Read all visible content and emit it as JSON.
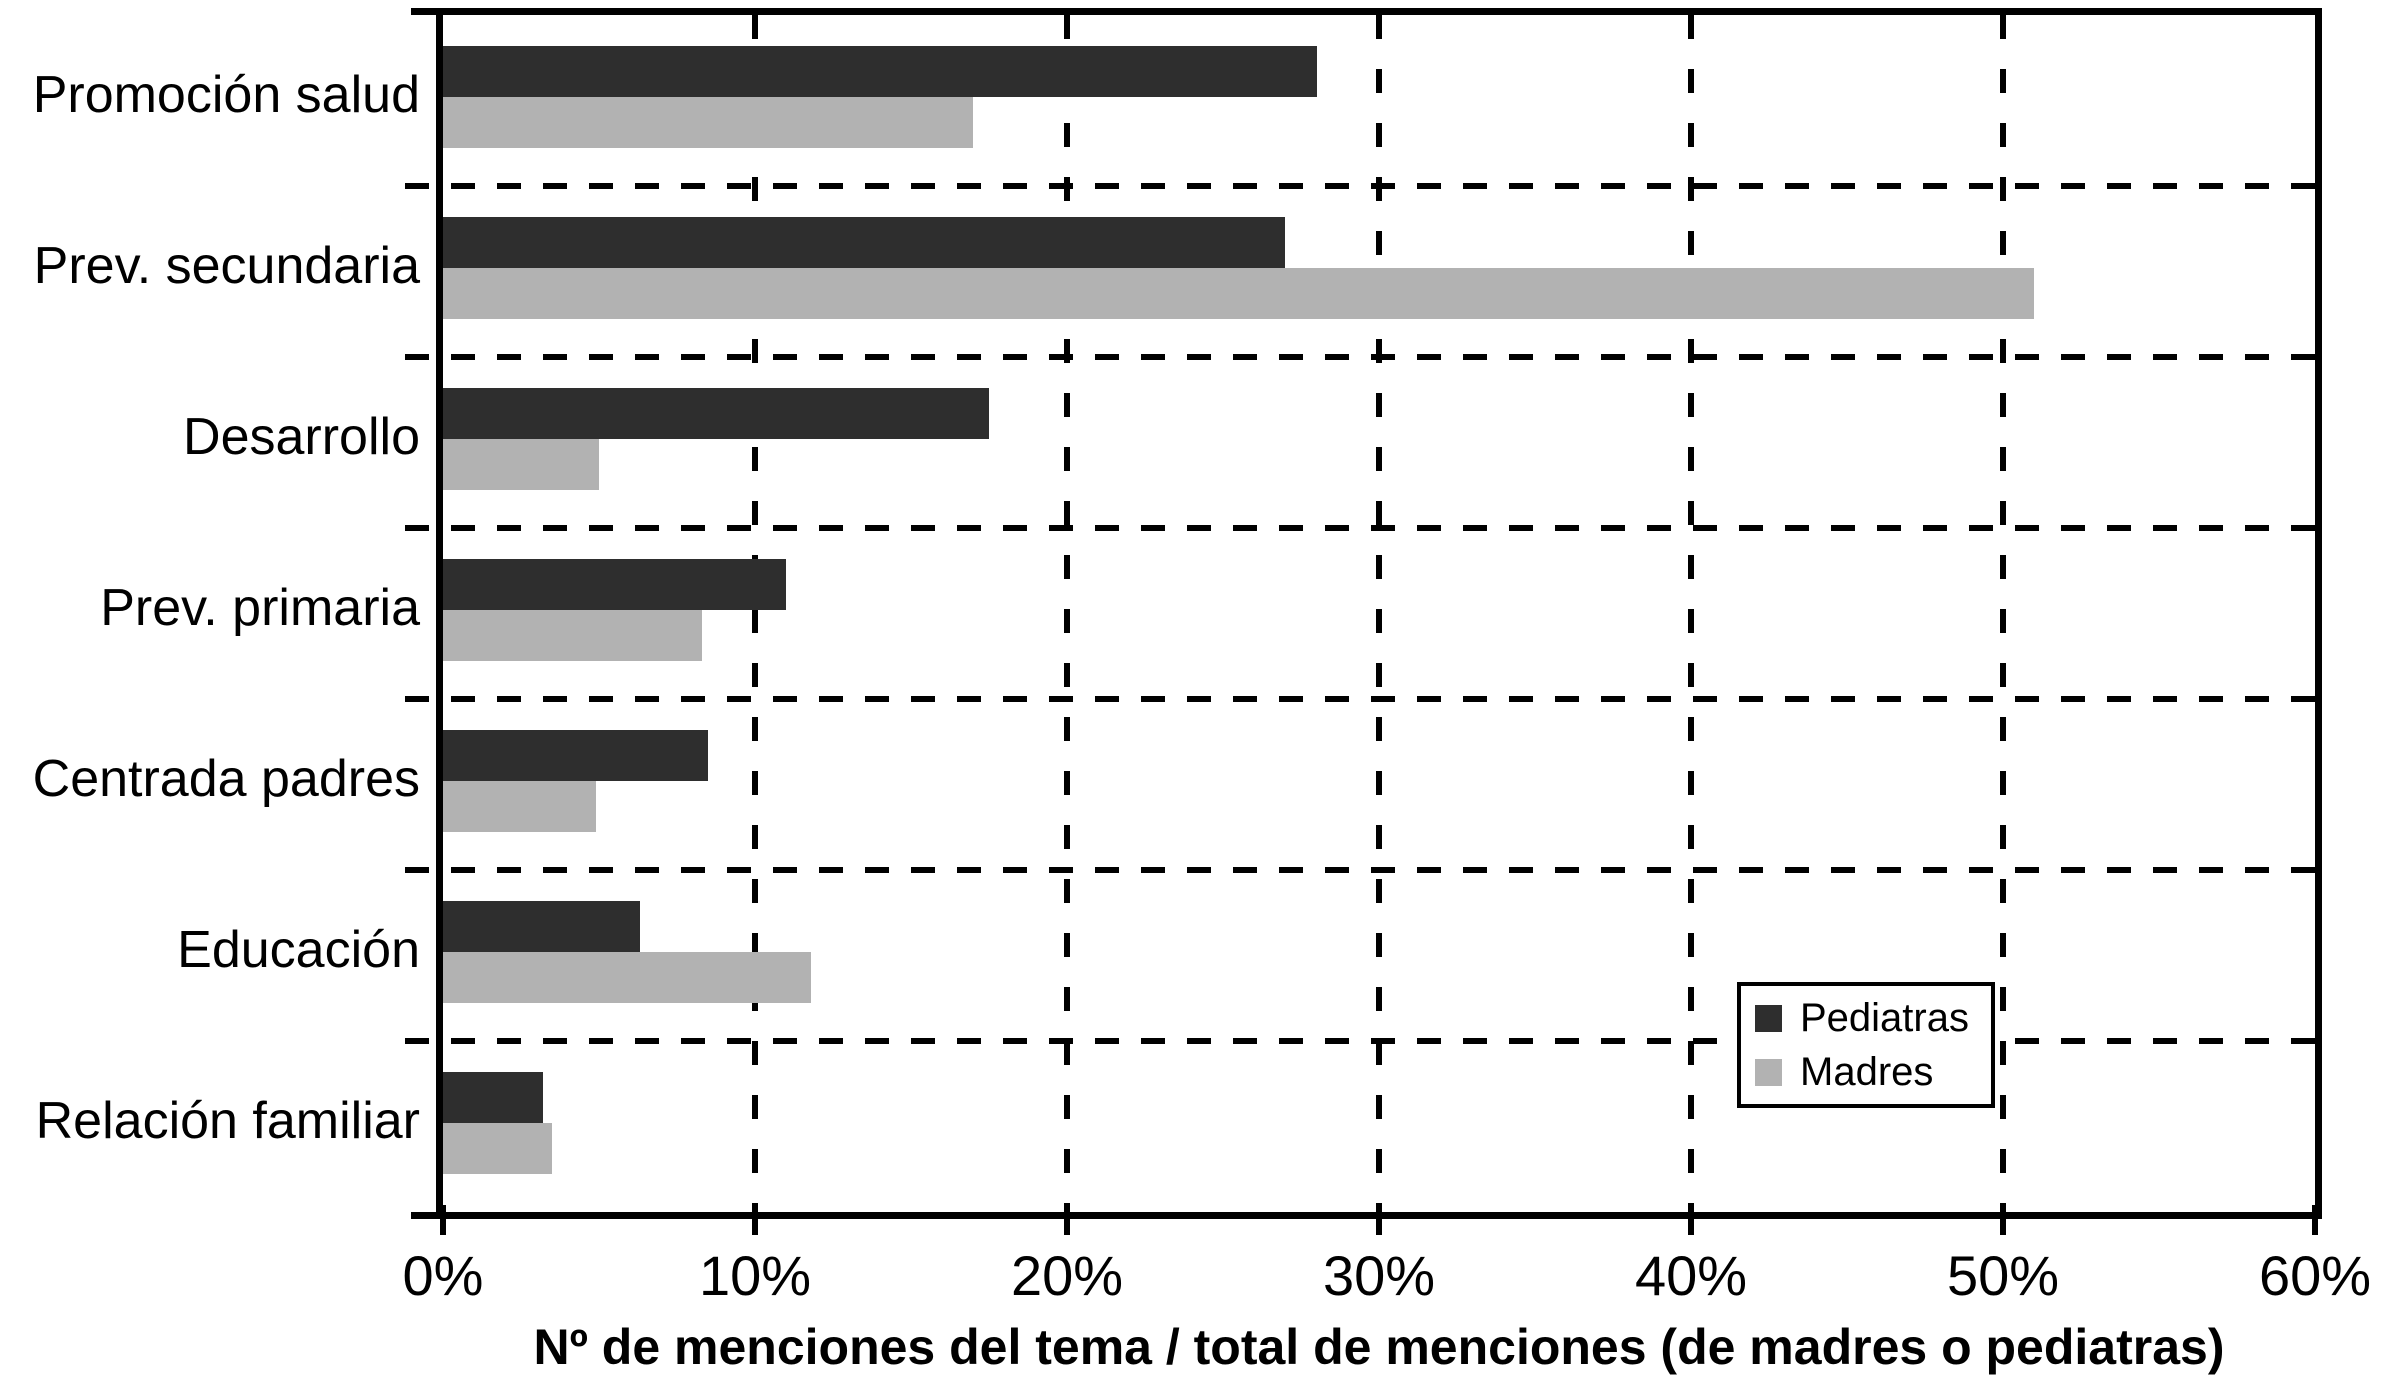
{
  "chart_data": {
    "type": "bar",
    "orientation": "horizontal",
    "title": "",
    "xlabel": "Nº de menciones del tema / total de menciones (de madres o pediatras)",
    "ylabel": "",
    "xlim": [
      0,
      60
    ],
    "x_tick_labels": [
      "0%",
      "10%",
      "20%",
      "30%",
      "40%",
      "50%",
      "60%"
    ],
    "x_tick_values": [
      0,
      10,
      20,
      30,
      40,
      50,
      60
    ],
    "grid": "dashed vertical gridlines every 10%, dashed horizontal separators between categories",
    "legend_position": "inside lower-right",
    "categories": [
      "Promoción salud",
      "Prev. secundaria",
      "Desarrollo",
      "Prev. primaria",
      "Centrada padres",
      "Educación",
      "Relación familiar"
    ],
    "series": [
      {
        "name": "Pediatras",
        "color": "#2e2e2e",
        "values": [
          28,
          27,
          17.5,
          11,
          8.5,
          6.3,
          3.2
        ]
      },
      {
        "name": "Madres",
        "color": "#b2b2b2",
        "values": [
          17,
          51,
          5,
          8.3,
          4.9,
          11.8,
          3.5
        ]
      }
    ]
  },
  "colors": {
    "axis": "#000000",
    "background": "#ffffff",
    "pediatras_bar": "#2e2e2e",
    "madres_bar": "#b2b2b2"
  }
}
